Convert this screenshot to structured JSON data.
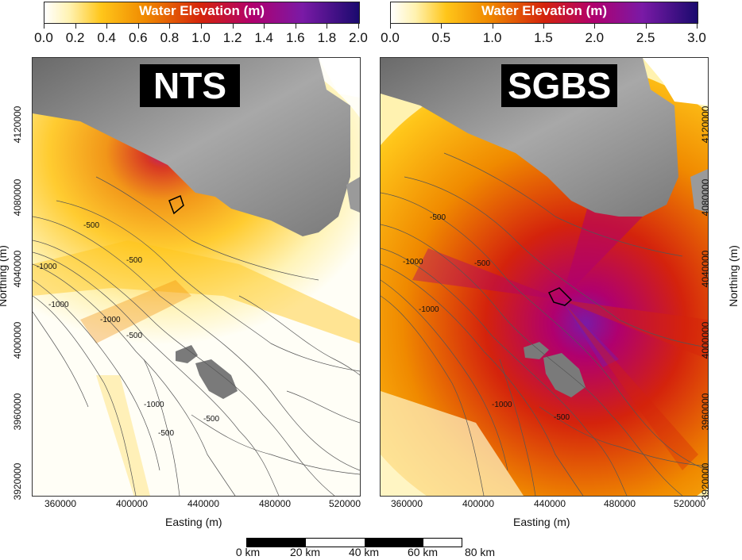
{
  "panels": [
    {
      "id": "nts",
      "label": "NTS",
      "colorbar": {
        "title": "Water Elevation (m)",
        "ticks": [
          "0.0",
          "0.2",
          "0.4",
          "0.6",
          "0.8",
          "1.0",
          "1.2",
          "1.4",
          "1.6",
          "1.8",
          "2.0"
        ]
      },
      "contour_labels": [
        "-500",
        "-500",
        "-1000",
        "-1000",
        "-1000",
        "-500",
        "-1000",
        "-500",
        "-500"
      ]
    },
    {
      "id": "sgbs",
      "label": "SGBS",
      "colorbar": {
        "title": "Water Elevation (m)",
        "ticks": [
          "0.0",
          "0.5",
          "1.0",
          "1.5",
          "2.0",
          "2.5",
          "3.0"
        ]
      },
      "contour_labels": [
        "-500",
        "-1000",
        "-500",
        "-1000",
        "-1000",
        "-500"
      ]
    }
  ],
  "axes": {
    "xlabel": "Easting (m)",
    "ylabel": "Northing (m)",
    "xticks": [
      "360000",
      "400000",
      "440000",
      "480000",
      "520000"
    ],
    "yticks": [
      "4120000",
      "4080000",
      "4040000",
      "4000000",
      "3960000",
      "3920000"
    ]
  },
  "scale_bar": {
    "labels": [
      "0 km",
      "20 km",
      "40 km",
      "60 km",
      "80 km"
    ]
  },
  "colors": {
    "land": "#8c8c8c",
    "ramp": [
      "#ffffff",
      "#ffc61a",
      "#f08a00",
      "#d4230c",
      "#b0006e",
      "#7a1aa6",
      "#1a0a6e"
    ]
  }
}
